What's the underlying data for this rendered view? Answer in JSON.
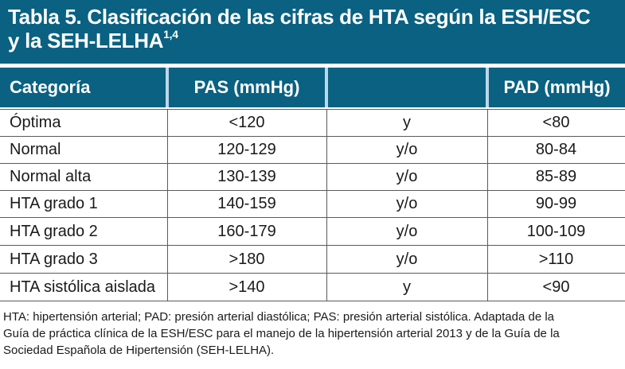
{
  "title": {
    "line1": "Tabla 5. Clasificación de las cifras de HTA según la ESH/ESC",
    "line2": "y la SEH-LELHA",
    "sup": "1,4"
  },
  "header": {
    "categoria": "Categoría",
    "pas": "PAS (mmHg)",
    "middle": "",
    "pad": "PAD (mmHg)"
  },
  "rows": [
    {
      "categoria": "Óptima",
      "pas": "<120",
      "conj": "y",
      "pad": "<80"
    },
    {
      "categoria": "Normal",
      "pas": "120-129",
      "conj": "y/o",
      "pad": "80-84"
    },
    {
      "categoria": "Normal alta",
      "pas": "130-139",
      "conj": "y/o",
      "pad": "85-89"
    },
    {
      "categoria": "HTA grado 1",
      "pas": "140-159",
      "conj": "y/o",
      "pad": "90-99"
    },
    {
      "categoria": "HTA grado 2",
      "pas": "160-179",
      "conj": "y/o",
      "pad": "100-109"
    },
    {
      "categoria": "HTA grado 3",
      "pas": ">180",
      "conj": "y/o",
      "pad": ">110"
    },
    {
      "categoria": "HTA sistólica aislada",
      "pas": ">140",
      "conj": "y",
      "pad": "<90"
    }
  ],
  "footnote": {
    "line1": "HTA: hipertensión arterial; PAD: presión arterial diastólica; PAS: presión arterial sistólica. Adaptada de la",
    "line2": "Guía de práctica clínica de la ESH/ESC para el manejo de la hipertensión arterial 2013 y de la Guía de la",
    "line3": "Sociedad Española de Hipertensión (SEH-LELHA)."
  },
  "colors": {
    "header_bg": "#0a6182",
    "header_gap": "#bdd7ea",
    "text": "#1a1a1a"
  }
}
